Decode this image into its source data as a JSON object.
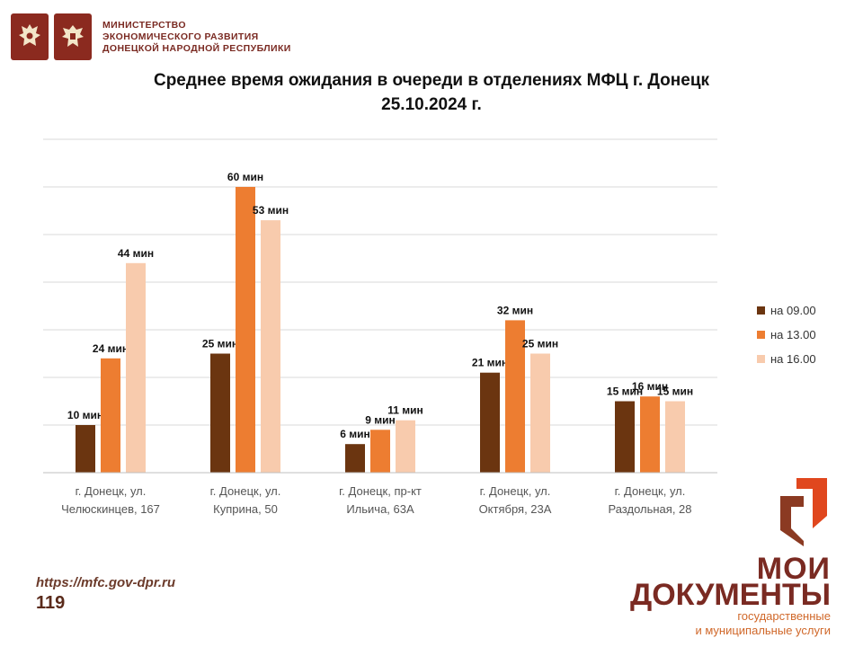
{
  "header": {
    "ministry_lines": [
      "МИНИСТЕРСТВО",
      "ЭКОНОМИЧЕСКОГО РАЗВИТИЯ",
      "ДОНЕЦКОЙ НАРОДНОЙ РЕСПУБЛИКИ"
    ],
    "emblem_icons": [
      "russia-eagle-emblem-icon",
      "dpr-eagle-emblem-icon"
    ]
  },
  "title_lines": [
    "Среднее время ожидания в очереди в отделениях МФЦ г. Донецк",
    "25.10.2024 г."
  ],
  "chart_data": {
    "type": "bar",
    "title": "Среднее время ожидания в очереди в отделениях МФЦ г. Донецк 25.10.2024 г.",
    "categories": [
      [
        "г. Донецк, ул.",
        "Челюскинцев, 167"
      ],
      [
        "г. Донецк, ул.",
        "Куприна, 50"
      ],
      [
        "г. Донецк, пр-кт",
        "Ильича, 63А"
      ],
      [
        "г. Донецк, ул.",
        "Октября, 23А"
      ],
      [
        "г. Донецк, ул.",
        "Раздольная, 28"
      ]
    ],
    "series": [
      {
        "name": "на 09.00",
        "color": "#6b3510",
        "values": [
          10,
          25,
          6,
          21,
          15
        ],
        "labels": [
          "10 мин",
          "25 мин",
          "6 мин",
          "21 мин",
          "15 мин"
        ]
      },
      {
        "name": "на 13.00",
        "color": "#ed7d31",
        "values": [
          24,
          60,
          9,
          32,
          16
        ],
        "labels": [
          "24 мин",
          "60 мин",
          "9 мин",
          "32 мин",
          "16 мин"
        ]
      },
      {
        "name": "на 16.00",
        "color": "#f8cbad",
        "values": [
          44,
          53,
          11,
          25,
          15
        ],
        "labels": [
          "44 мин",
          "53 мин",
          "11 мин",
          "25 мин",
          "15 мин"
        ]
      }
    ],
    "ylim": [
      0,
      70
    ],
    "grid": true,
    "legend": "right"
  },
  "footer": {
    "url": "https://mfc.gov-dpr.ru",
    "page_number": "119"
  },
  "brand": {
    "line1": "МОИ",
    "line2": "ДОКУМЕНТЫ",
    "sub1": "государственные",
    "sub2": "и муниципальные услуги"
  }
}
